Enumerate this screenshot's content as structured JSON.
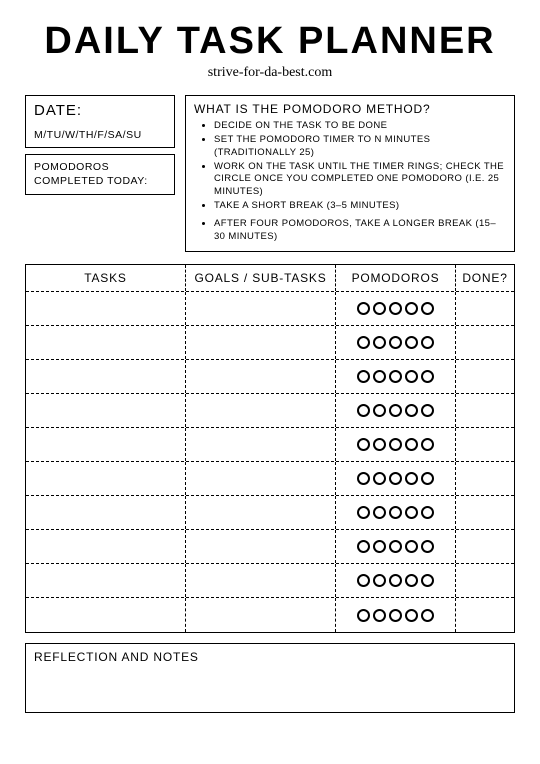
{
  "title": "DAILY TASK PLANNER",
  "subtitle": "strive-for-da-best.com",
  "date": {
    "label": "DATE:",
    "days": "M/TU/W/TH/F/SA/SU"
  },
  "pomodoros_completed_label": "POMODOROS COMPLETED TODAY:",
  "info": {
    "title": "WHAT IS THE POMODORO METHOD?",
    "items": [
      "Decide on the task to be done",
      "Set the pomodoro timer to n minutes (traditionally 25)",
      "Work on the task until the timer rings; check the circle once you completed one pomodoro (i.e. 25 minutes)",
      "Take a short break (3–5 minutes)",
      "After four pomodoros, take a longer break (15–30 minutes)"
    ]
  },
  "table": {
    "headers": {
      "tasks": "TASKS",
      "goals": "GOALS / SUB-TASKS",
      "pomodoros": "POMODOROS",
      "done": "DONE?"
    },
    "row_count": 10,
    "pomodoros_per_row": 5
  },
  "notes_label": "REFLECTION AND NOTES",
  "colors": {
    "border": "#000000",
    "background": "#ffffff",
    "text": "#000000"
  }
}
